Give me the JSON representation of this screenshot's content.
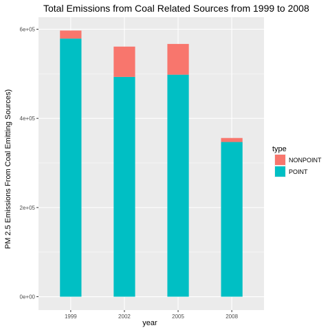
{
  "chart_data": {
    "type": "bar",
    "stacked": true,
    "title": "Total Emissions from Coal Related Sources from 1999 to 2008",
    "xlabel": "year",
    "ylabel": "PM 2.5 Emissions From Coal Emitting Sources)",
    "categories": [
      "1999",
      "2002",
      "2005",
      "2008"
    ],
    "series": [
      {
        "name": "POINT",
        "color": "#00BFC4",
        "values": [
          579000,
          493000,
          498000,
          347000
        ]
      },
      {
        "name": "NONPOINT",
        "color": "#F8766D",
        "values": [
          18000,
          68000,
          69000,
          9000
        ]
      }
    ],
    "ylim": [
      -30000,
      627000
    ],
    "yticks": [
      0,
      200000,
      400000,
      600000
    ],
    "ytick_labels": [
      "0e+00",
      "2e+05",
      "4e+05",
      "6e+05"
    ],
    "legend": {
      "title": "type",
      "position": "right",
      "entries": [
        {
          "label": "NONPOINT",
          "color": "#F8766D"
        },
        {
          "label": "POINT",
          "color": "#00BFC4"
        }
      ]
    },
    "grid": true,
    "panel_background": "#EBEBEB",
    "grid_color": "#FFFFFF"
  }
}
